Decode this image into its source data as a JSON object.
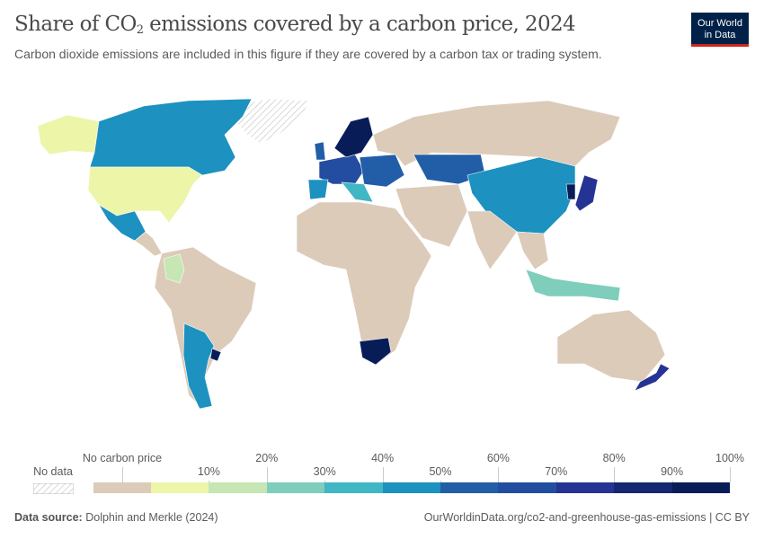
{
  "header": {
    "title_pre": "Share of CO",
    "title_sub": "2",
    "title_post": " emissions covered by a carbon price, 2024",
    "subtitle": "Carbon dioxide emissions are included in this figure if they are covered by a carbon tax or trading system.",
    "logo_line1": "Our World",
    "logo_line2": "in Data"
  },
  "legend": {
    "no_data": "No data",
    "no_carbon_price": "No carbon price",
    "no_carbon_price_color": "#dccbb9",
    "bins": [
      {
        "label": "10%",
        "color": "#edf5a9"
      },
      {
        "label": "20%",
        "color": "#c6e6b3"
      },
      {
        "label": "30%",
        "color": "#7fcdbb"
      },
      {
        "label": "40%",
        "color": "#41b6c4"
      },
      {
        "label": "50%",
        "color": "#1d91c0"
      },
      {
        "label": "60%",
        "color": "#225ea8"
      },
      {
        "label": "70%",
        "color": "#234da0"
      },
      {
        "label": "80%",
        "color": "#253494"
      },
      {
        "label": "90%",
        "color": "#162772"
      },
      {
        "label": "100%",
        "color": "#081d58"
      }
    ]
  },
  "footer": {
    "source_label": "Data source:",
    "source": "Dolphin and Merkle (2024)",
    "url": "OurWorldinData.org/co2-and-greenhouse-gas-emissions | CC BY"
  }
}
